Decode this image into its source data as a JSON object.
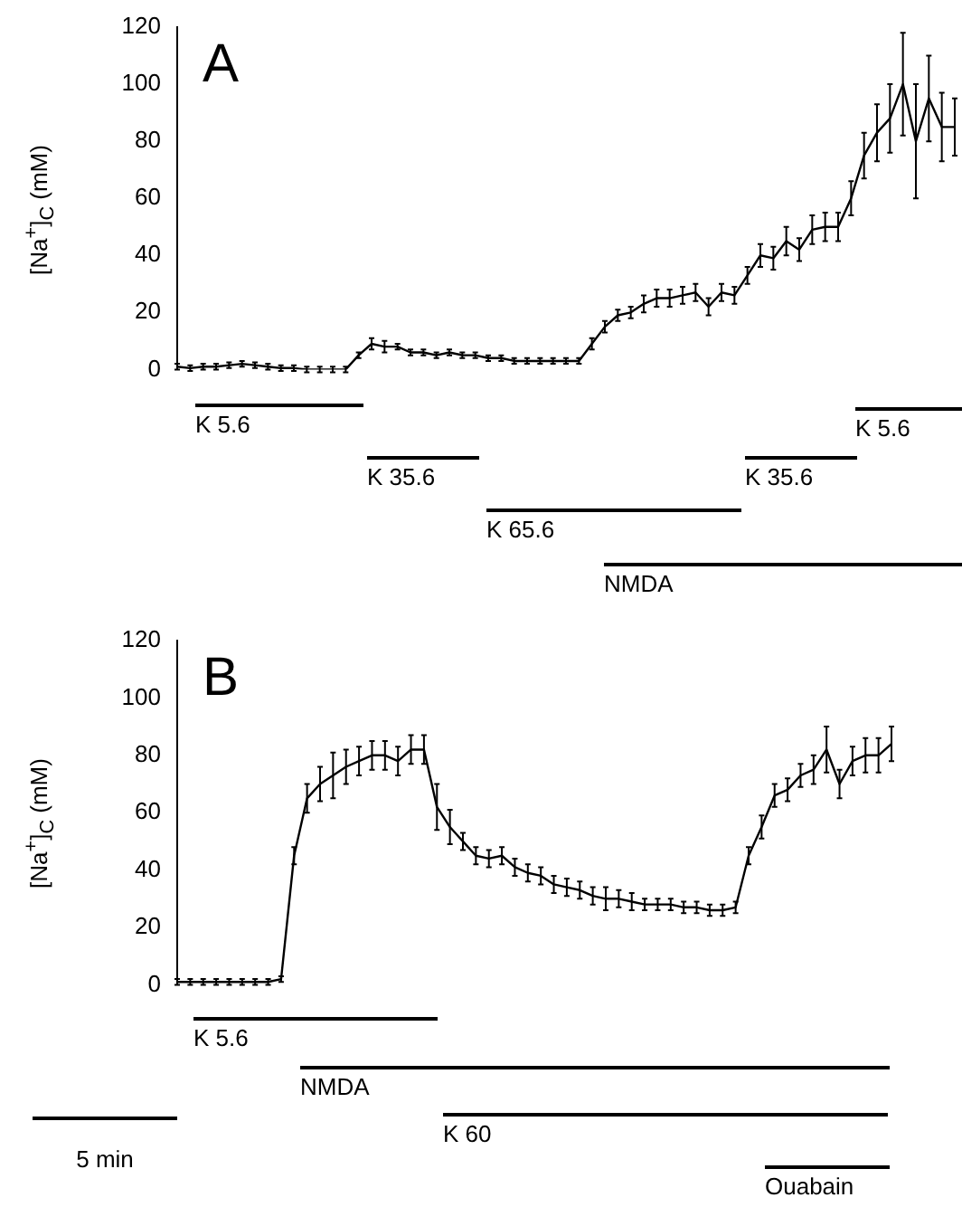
{
  "chart_data": [
    {
      "type": "line",
      "title": "A",
      "ylabel": "[Na$^{+}$]$_{C}$ (mM)",
      "tick_labels": "y",
      "grid": false,
      "legend": false,
      "marker": "none",
      "line_style": "solid",
      "ylim": [
        0,
        120
      ],
      "yticks": [
        0,
        20,
        40,
        60,
        80,
        100,
        120
      ],
      "categories": [
        null,
        null,
        null,
        null,
        null,
        null,
        null,
        null,
        null,
        null,
        null,
        null,
        null,
        null,
        null,
        null,
        null,
        null,
        null,
        null,
        null,
        null,
        null,
        null,
        null,
        null,
        null,
        null,
        null,
        null,
        null,
        null,
        null,
        null,
        null,
        null,
        null,
        null,
        null,
        null,
        null,
        null,
        null,
        null,
        null,
        null,
        null,
        null,
        null,
        null,
        null,
        null,
        null,
        null,
        null,
        null,
        null,
        null,
        null,
        null,
        null
      ],
      "series": [
        {
          "color": "#000000",
          "values": [
            1,
            0.5,
            1,
            1,
            1.5,
            2,
            1.5,
            1,
            0.5,
            0.5,
            0,
            0,
            0,
            0,
            5,
            9,
            8,
            8,
            6,
            6,
            5,
            6,
            5,
            5,
            4,
            4,
            3,
            3,
            3,
            3,
            3,
            3,
            9,
            15,
            19,
            20,
            23,
            25,
            25,
            26,
            27,
            22,
            27,
            26,
            33,
            40,
            39,
            45,
            42,
            49,
            50,
            50,
            60,
            75,
            83,
            88,
            100,
            80,
            95,
            85,
            85
          ],
          "errors": [
            1,
            1,
            1,
            1,
            1,
            1,
            1,
            1,
            1,
            1,
            1,
            1,
            1,
            1,
            1,
            2,
            2,
            1,
            1,
            1,
            1,
            1,
            1,
            1,
            1,
            1,
            1,
            1,
            1,
            1,
            1,
            1,
            2,
            2,
            2,
            2,
            3,
            3,
            3,
            3,
            3,
            3,
            3,
            3,
            3,
            4,
            4,
            5,
            4,
            5,
            5,
            5,
            6,
            8,
            10,
            12,
            18,
            20,
            15,
            12,
            10
          ]
        }
      ],
      "annotations": [
        "K 5.6",
        "K 35.6",
        "K 65.6",
        "K 35.6",
        "K 5.6",
        "NMDA"
      ]
    },
    {
      "type": "line",
      "title": "B",
      "ylabel": "[Na$^{+}$]$_{C}$ (mM)",
      "tick_labels": "y",
      "grid": false,
      "legend": false,
      "marker": "none",
      "line_style": "solid",
      "ylim": [
        0,
        120
      ],
      "yticks": [
        0,
        20,
        40,
        60,
        80,
        100,
        120
      ],
      "categories": [
        null,
        null,
        null,
        null,
        null,
        null,
        null,
        null,
        null,
        null,
        null,
        null,
        null,
        null,
        null,
        null,
        null,
        null,
        null,
        null,
        null,
        null,
        null,
        null,
        null,
        null,
        null,
        null,
        null,
        null,
        null,
        null,
        null,
        null,
        null,
        null,
        null,
        null,
        null,
        null,
        null,
        null,
        null,
        null,
        null,
        null,
        null,
        null,
        null,
        null,
        null,
        null,
        null,
        null,
        null,
        null
      ],
      "series": [
        {
          "color": "#000000",
          "values": [
            1,
            1,
            1,
            1,
            1,
            1,
            1,
            1,
            2,
            45,
            65,
            70,
            73,
            76,
            78,
            80,
            80,
            78,
            82,
            82,
            62,
            55,
            50,
            45,
            44,
            45,
            41,
            39,
            38,
            35,
            34,
            33,
            31,
            30,
            30,
            29,
            28,
            28,
            28,
            27,
            27,
            26,
            26,
            27,
            45,
            55,
            66,
            68,
            73,
            75,
            82,
            70,
            78,
            80,
            80,
            84
          ],
          "errors": [
            1,
            1,
            1,
            1,
            1,
            1,
            1,
            1,
            1,
            3,
            5,
            6,
            8,
            6,
            5,
            5,
            5,
            5,
            5,
            5,
            8,
            6,
            3,
            3,
            3,
            3,
            3,
            3,
            3,
            3,
            3,
            3,
            3,
            4,
            3,
            3,
            2,
            2,
            2,
            2,
            2,
            2,
            2,
            2,
            3,
            4,
            4,
            4,
            4,
            5,
            8,
            5,
            5,
            6,
            6,
            6
          ]
        }
      ],
      "annotations": [
        "K 5.6",
        "NMDA",
        "K 60",
        "Ouabain",
        "5 min"
      ]
    }
  ]
}
